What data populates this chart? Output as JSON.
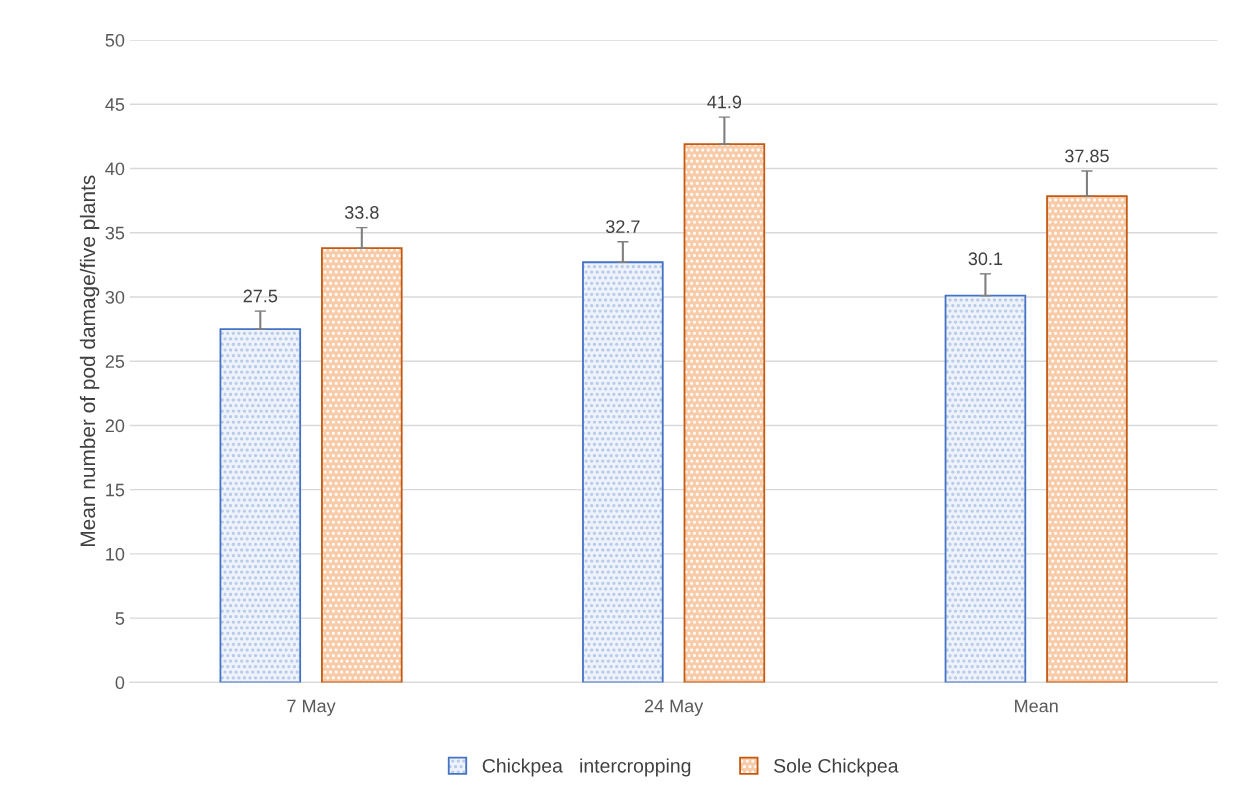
{
  "chart_data": {
    "type": "bar",
    "ylabel": "Mean number of pod damage/five plants",
    "categories": [
      "7 May",
      "24 May",
      "Mean"
    ],
    "series": [
      {
        "name": "Chickpea   intercropping",
        "color": "#4472c4",
        "values": [
          27.5,
          32.7,
          30.1
        ],
        "errors": [
          [
            27.5,
            28.9
          ],
          [
            32.7,
            34.3
          ],
          [
            30.1,
            31.8
          ]
        ]
      },
      {
        "name": "Sole Chickpea",
        "color": "#c55a11",
        "values": [
          33.8,
          41.9,
          37.85
        ],
        "errors": [
          [
            33.8,
            35.4
          ],
          [
            41.9,
            44.0
          ],
          [
            37.85,
            39.8
          ]
        ]
      }
    ],
    "ylim": [
      0,
      50
    ],
    "yticks": [
      0,
      5,
      10,
      15,
      20,
      25,
      30,
      35,
      40,
      45,
      50
    ],
    "grid": "y",
    "legend": "bottom",
    "data_labels": true
  }
}
